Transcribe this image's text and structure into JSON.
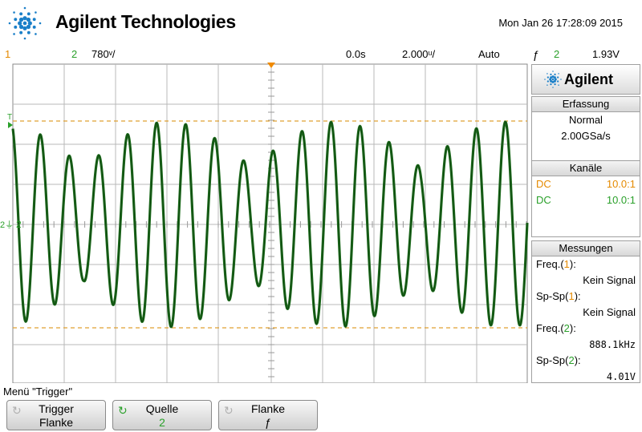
{
  "header": {
    "brand": "Agilent Technologies",
    "datetime": "Mon Jan 26 17:28:09 2015"
  },
  "statusbar": {
    "ch1_label": "1",
    "ch2_label": "2",
    "ch2_scale": "780ᵛ/",
    "time_offset": "0.0s",
    "time_scale": "2.000ᵘ/",
    "trigger_mode": "Auto",
    "trigger_edge_icon": "rising-edge-icon",
    "trigger_source": "2",
    "trigger_level": "1.93V"
  },
  "screen": {
    "trigger_marker": "T",
    "ch2_ground_marker": "2"
  },
  "panel": {
    "brand": "Agilent",
    "acquisition": {
      "title": "Erfassung",
      "mode": "Normal",
      "rate": "2.00GSa/s"
    },
    "channels": {
      "title": "Kanäle",
      "rows": [
        {
          "coupling": "DC",
          "probe": "10.0:1",
          "color": "#e58a00"
        },
        {
          "coupling": "DC",
          "probe": "10.0:1",
          "color": "#2aa02a"
        }
      ]
    },
    "measurements": {
      "title": "Messungen",
      "items": [
        {
          "label_pre": "Freq.(",
          "ch": "1",
          "label_post": "):",
          "value": "Kein Signal",
          "ch_color": "#e58a00",
          "mono": false
        },
        {
          "label_pre": "Sp-Sp(",
          "ch": "1",
          "label_post": "):",
          "value": "Kein Signal",
          "ch_color": "#e58a00",
          "mono": false
        },
        {
          "label_pre": "Freq.(",
          "ch": "2",
          "label_post": "):",
          "value": "888.1kHz",
          "ch_color": "#2aa02a",
          "mono": true
        },
        {
          "label_pre": "Sp-Sp(",
          "ch": "2",
          "label_post": "):",
          "value": "4.01V",
          "ch_color": "#2aa02a",
          "mono": true
        }
      ]
    }
  },
  "menu": {
    "title": "Menü \"Trigger\"",
    "softkeys": [
      {
        "line1": "Trigger",
        "line2": "Flanke",
        "knob": false
      },
      {
        "line1": "Quelle",
        "line2": "2",
        "knob": true
      },
      {
        "line1": "Flanke",
        "line2": "ƒ",
        "knob": false
      }
    ]
  },
  "colors": {
    "ch1": "#e58a00",
    "ch2_trace": "#1f6e1f",
    "grid": "#b8b8b8",
    "trigger_line": "#e0a030"
  }
}
